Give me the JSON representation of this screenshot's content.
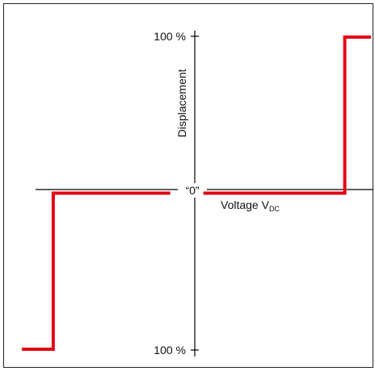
{
  "chart_data": {
    "type": "line",
    "title": "",
    "ylabel": "Displacement",
    "xlabel_main": "Voltage V",
    "xlabel_subscript": "DC",
    "origin_label": "“0”",
    "ytick_top": "100 %",
    "ytick_bottom": "100 %",
    "ylim": [
      -100,
      100
    ],
    "xlim": [
      -1,
      1
    ],
    "grid": false,
    "series": [
      {
        "color": "#e30613",
        "x": [
          -1.0,
          -0.82,
          -0.82,
          -0.15,
          0.04,
          0.85,
          0.85,
          1.0
        ],
        "y": [
          -100,
          -100,
          0,
          0,
          0,
          0,
          100,
          100
        ]
      }
    ],
    "axis_color": "#000000",
    "frame_color": "#222222"
  }
}
